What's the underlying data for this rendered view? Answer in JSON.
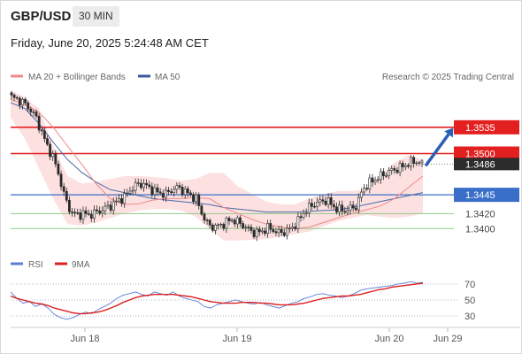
{
  "header": {
    "symbol": "GBP/USD",
    "interval": "30 MIN",
    "datetime": "Friday, June 20, 2025 5:24:48 AM CET"
  },
  "legend": {
    "ma20": "MA 20 + Bollinger Bands",
    "ma50": "MA 50",
    "credit": "Research © 2025 Trading Central",
    "rsi": "RSI",
    "rsi_ma": "9MA"
  },
  "colors": {
    "resistance": "#e32020",
    "support_key": "#3a6fc9",
    "support": "#8fc98b",
    "bollinger": "#fde0e0",
    "ma20": "#ee8a8a",
    "ma50": "#4a6aa8",
    "candle": "#2a2a2a",
    "rsi": "#5b7fd6",
    "rsi_ma": "#dd2020",
    "arrow": "#2b5fb6"
  },
  "chart_data": [
    {
      "type": "candlestick",
      "title": "",
      "x_ticks": [
        "Jun 18",
        "Jun 19",
        "Jun 20",
        "Jun 29"
      ],
      "ylim": [
        1.3372,
        1.3582
      ],
      "current_price": 1.3486,
      "resistance_levels": [
        1.3535,
        1.35
      ],
      "support_levels": [
        1.3445,
        1.342,
        1.34
      ],
      "price_path": [
        1.3575,
        1.3572,
        1.3568,
        1.356,
        1.355,
        1.353,
        1.351,
        1.3495,
        1.347,
        1.344,
        1.3422,
        1.3418,
        1.342,
        1.3418,
        1.3421,
        1.3424,
        1.3428,
        1.3432,
        1.3438,
        1.3442,
        1.3452,
        1.3458,
        1.346,
        1.3455,
        1.345,
        1.3447,
        1.3446,
        1.3452,
        1.3455,
        1.345,
        1.3445,
        1.344,
        1.342,
        1.3405,
        1.3402,
        1.3404,
        1.3408,
        1.3412,
        1.3409,
        1.3404,
        1.3398,
        1.3394,
        1.3396,
        1.3401,
        1.3398,
        1.3394,
        1.3396,
        1.34,
        1.3408,
        1.342,
        1.3428,
        1.3433,
        1.3436,
        1.3438,
        1.343,
        1.3425,
        1.3424,
        1.3427,
        1.343,
        1.3452,
        1.346,
        1.3465,
        1.347,
        1.3474,
        1.3478,
        1.348,
        1.3484,
        1.3488,
        1.349,
        1.3486
      ],
      "forecast_target": 1.3535,
      "series": [
        {
          "name": "MA 20",
          "values": [
            1.3572,
            1.3566,
            1.3555,
            1.3535,
            1.351,
            1.3486,
            1.346,
            1.344,
            1.3432,
            1.3433,
            1.3438,
            1.344,
            1.344,
            1.3441,
            1.344,
            1.3428,
            1.342,
            1.3412,
            1.3406,
            1.3402,
            1.34,
            1.3402,
            1.3408,
            1.3414,
            1.342,
            1.3425,
            1.343,
            1.344,
            1.3455,
            1.347
          ]
        },
        {
          "name": "MA 50",
          "values": [
            1.3568,
            1.356,
            1.354,
            1.3515,
            1.3492,
            1.3475,
            1.3462,
            1.3452,
            1.3448,
            1.3444,
            1.344,
            1.3438,
            1.3436,
            1.3434,
            1.3432,
            1.3428,
            1.3426,
            1.3424,
            1.3422,
            1.3422,
            1.3422,
            1.3423,
            1.3424,
            1.3425,
            1.3428,
            1.3432,
            1.3436,
            1.344,
            1.3444,
            1.3448
          ]
        }
      ],
      "bollinger_upper": [
        1.3585,
        1.3575,
        1.356,
        1.351,
        1.347,
        1.346,
        1.3462,
        1.3466,
        1.347,
        1.347,
        1.3469,
        1.3467,
        1.3464,
        1.3466,
        1.3474,
        1.3474,
        1.3456,
        1.3446,
        1.3436,
        1.3432,
        1.3432,
        1.344,
        1.3446,
        1.345,
        1.345,
        1.3452,
        1.347,
        1.3488,
        1.3498,
        1.3492
      ],
      "bollinger_lower": [
        1.3548,
        1.352,
        1.348,
        1.344,
        1.3406,
        1.3404,
        1.3408,
        1.3414,
        1.342,
        1.3424,
        1.3426,
        1.3426,
        1.3424,
        1.3416,
        1.34,
        1.3384,
        1.3384,
        1.3385,
        1.3386,
        1.3389,
        1.3393,
        1.3396,
        1.3403,
        1.341,
        1.3414,
        1.3418,
        1.3416,
        1.3414,
        1.3416,
        1.342
      ]
    },
    {
      "type": "line",
      "title": "",
      "y_ticks": [
        70,
        50,
        30
      ],
      "ylim": [
        18,
        82
      ],
      "series": [
        {
          "name": "RSI",
          "values": [
            60,
            52,
            46,
            48,
            42,
            45,
            40,
            32,
            28,
            26,
            28,
            32,
            35,
            33,
            38,
            42,
            46,
            52,
            56,
            58,
            60,
            57,
            55,
            60,
            58,
            56,
            60,
            55,
            52,
            50,
            48,
            42,
            40,
            44,
            46,
            48,
            50,
            48,
            46,
            45,
            47,
            44,
            42,
            40,
            43,
            46,
            48,
            52,
            54,
            57,
            58,
            56,
            55,
            53,
            55,
            58,
            62,
            64,
            65,
            66,
            67,
            68,
            70,
            71,
            73,
            71,
            72
          ]
        },
        {
          "name": "9MA",
          "values": [
            55,
            52,
            50,
            48,
            46,
            45,
            43,
            40,
            38,
            36,
            34,
            33,
            33,
            34,
            35,
            37,
            40,
            43,
            47,
            50,
            53,
            55,
            56,
            57,
            57,
            57,
            57,
            56,
            55,
            54,
            52,
            50,
            48,
            47,
            46,
            46,
            46,
            47,
            47,
            47,
            46,
            46,
            45,
            44,
            44,
            44,
            45,
            46,
            48,
            50,
            52,
            53,
            54,
            55,
            55,
            56,
            57,
            59,
            61,
            63,
            64,
            66,
            67,
            68,
            69,
            70,
            71
          ]
        }
      ]
    }
  ]
}
